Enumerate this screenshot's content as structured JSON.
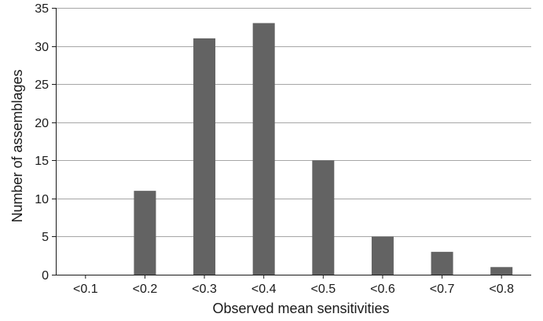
{
  "chart_data": {
    "type": "bar",
    "title": "",
    "xlabel": "Observed mean sensitivities",
    "ylabel": "Number of assemblages",
    "categories": [
      "<0.1",
      "<0.2",
      "<0.3",
      "<0.4",
      "<0.5",
      "<0.6",
      "<0.7",
      "<0.8"
    ],
    "values": [
      0,
      11,
      31,
      33,
      15,
      5,
      3,
      1
    ],
    "ylim": [
      0,
      35
    ],
    "yticks": [
      0,
      5,
      10,
      15,
      20,
      25,
      30,
      35
    ],
    "grid": "horizontal",
    "bar_color": "#636363",
    "grid_color": "#a6a6a6",
    "axis_color": "#1a1a1a"
  }
}
